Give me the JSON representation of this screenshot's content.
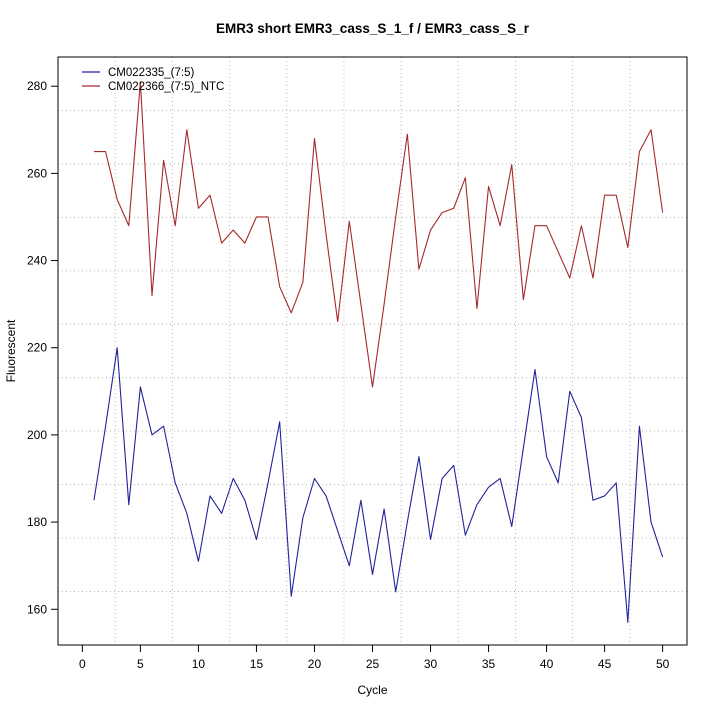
{
  "chart_data": {
    "type": "line",
    "title": "EMR3 short EMR3_cass_S_1_f / EMR3_cass_S_r",
    "xlabel": "Cycle",
    "ylabel": "Fluorescent",
    "x": [
      1,
      2,
      3,
      4,
      5,
      6,
      7,
      8,
      9,
      10,
      11,
      12,
      13,
      14,
      15,
      16,
      17,
      18,
      19,
      20,
      21,
      22,
      23,
      24,
      25,
      26,
      27,
      28,
      29,
      30,
      31,
      32,
      33,
      34,
      35,
      36,
      37,
      38,
      39,
      40,
      41,
      42,
      43,
      44,
      45,
      46,
      47,
      48,
      49,
      50
    ],
    "series": [
      {
        "name": "CM022335_(7:5)",
        "color": "#22229a",
        "values": [
          185,
          202,
          220,
          184,
          211,
          200,
          202,
          189,
          182,
          171,
          186,
          182,
          190,
          185,
          176,
          189,
          203,
          163,
          181,
          190,
          186,
          178,
          170,
          185,
          168,
          183,
          164,
          180,
          195,
          176,
          190,
          193,
          177,
          184,
          188,
          190,
          179,
          197,
          215,
          195,
          189,
          210,
          204,
          185,
          186,
          189,
          157,
          202,
          180,
          172
        ]
      },
      {
        "name": "CM022366_(7:5)_NTC",
        "color": "#a52a2a",
        "values": [
          265,
          265,
          254,
          248,
          281,
          232,
          263,
          248,
          270,
          252,
          255,
          244,
          247,
          244,
          250,
          250,
          234,
          228,
          235,
          268,
          246,
          226,
          249,
          230,
          211,
          230,
          250,
          269,
          238,
          247,
          251,
          252,
          259,
          229,
          257,
          248,
          262,
          231,
          248,
          248,
          242,
          236,
          248,
          236,
          255,
          255,
          243,
          265,
          270,
          251
        ]
      }
    ],
    "x_ticks": [
      0,
      5,
      10,
      15,
      20,
      25,
      30,
      35,
      40,
      45,
      50
    ],
    "y_ticks": [
      160,
      180,
      200,
      220,
      240,
      260,
      280
    ],
    "xlim": [
      -2.1,
      52.1
    ],
    "ylim": [
      151.8,
      286.7
    ],
    "grid": {
      "divisions": 11,
      "style": "dotted",
      "color": "#b8b8b8"
    },
    "legend": {
      "position": "top-left",
      "frame": false
    },
    "axis_color": "#000000"
  }
}
